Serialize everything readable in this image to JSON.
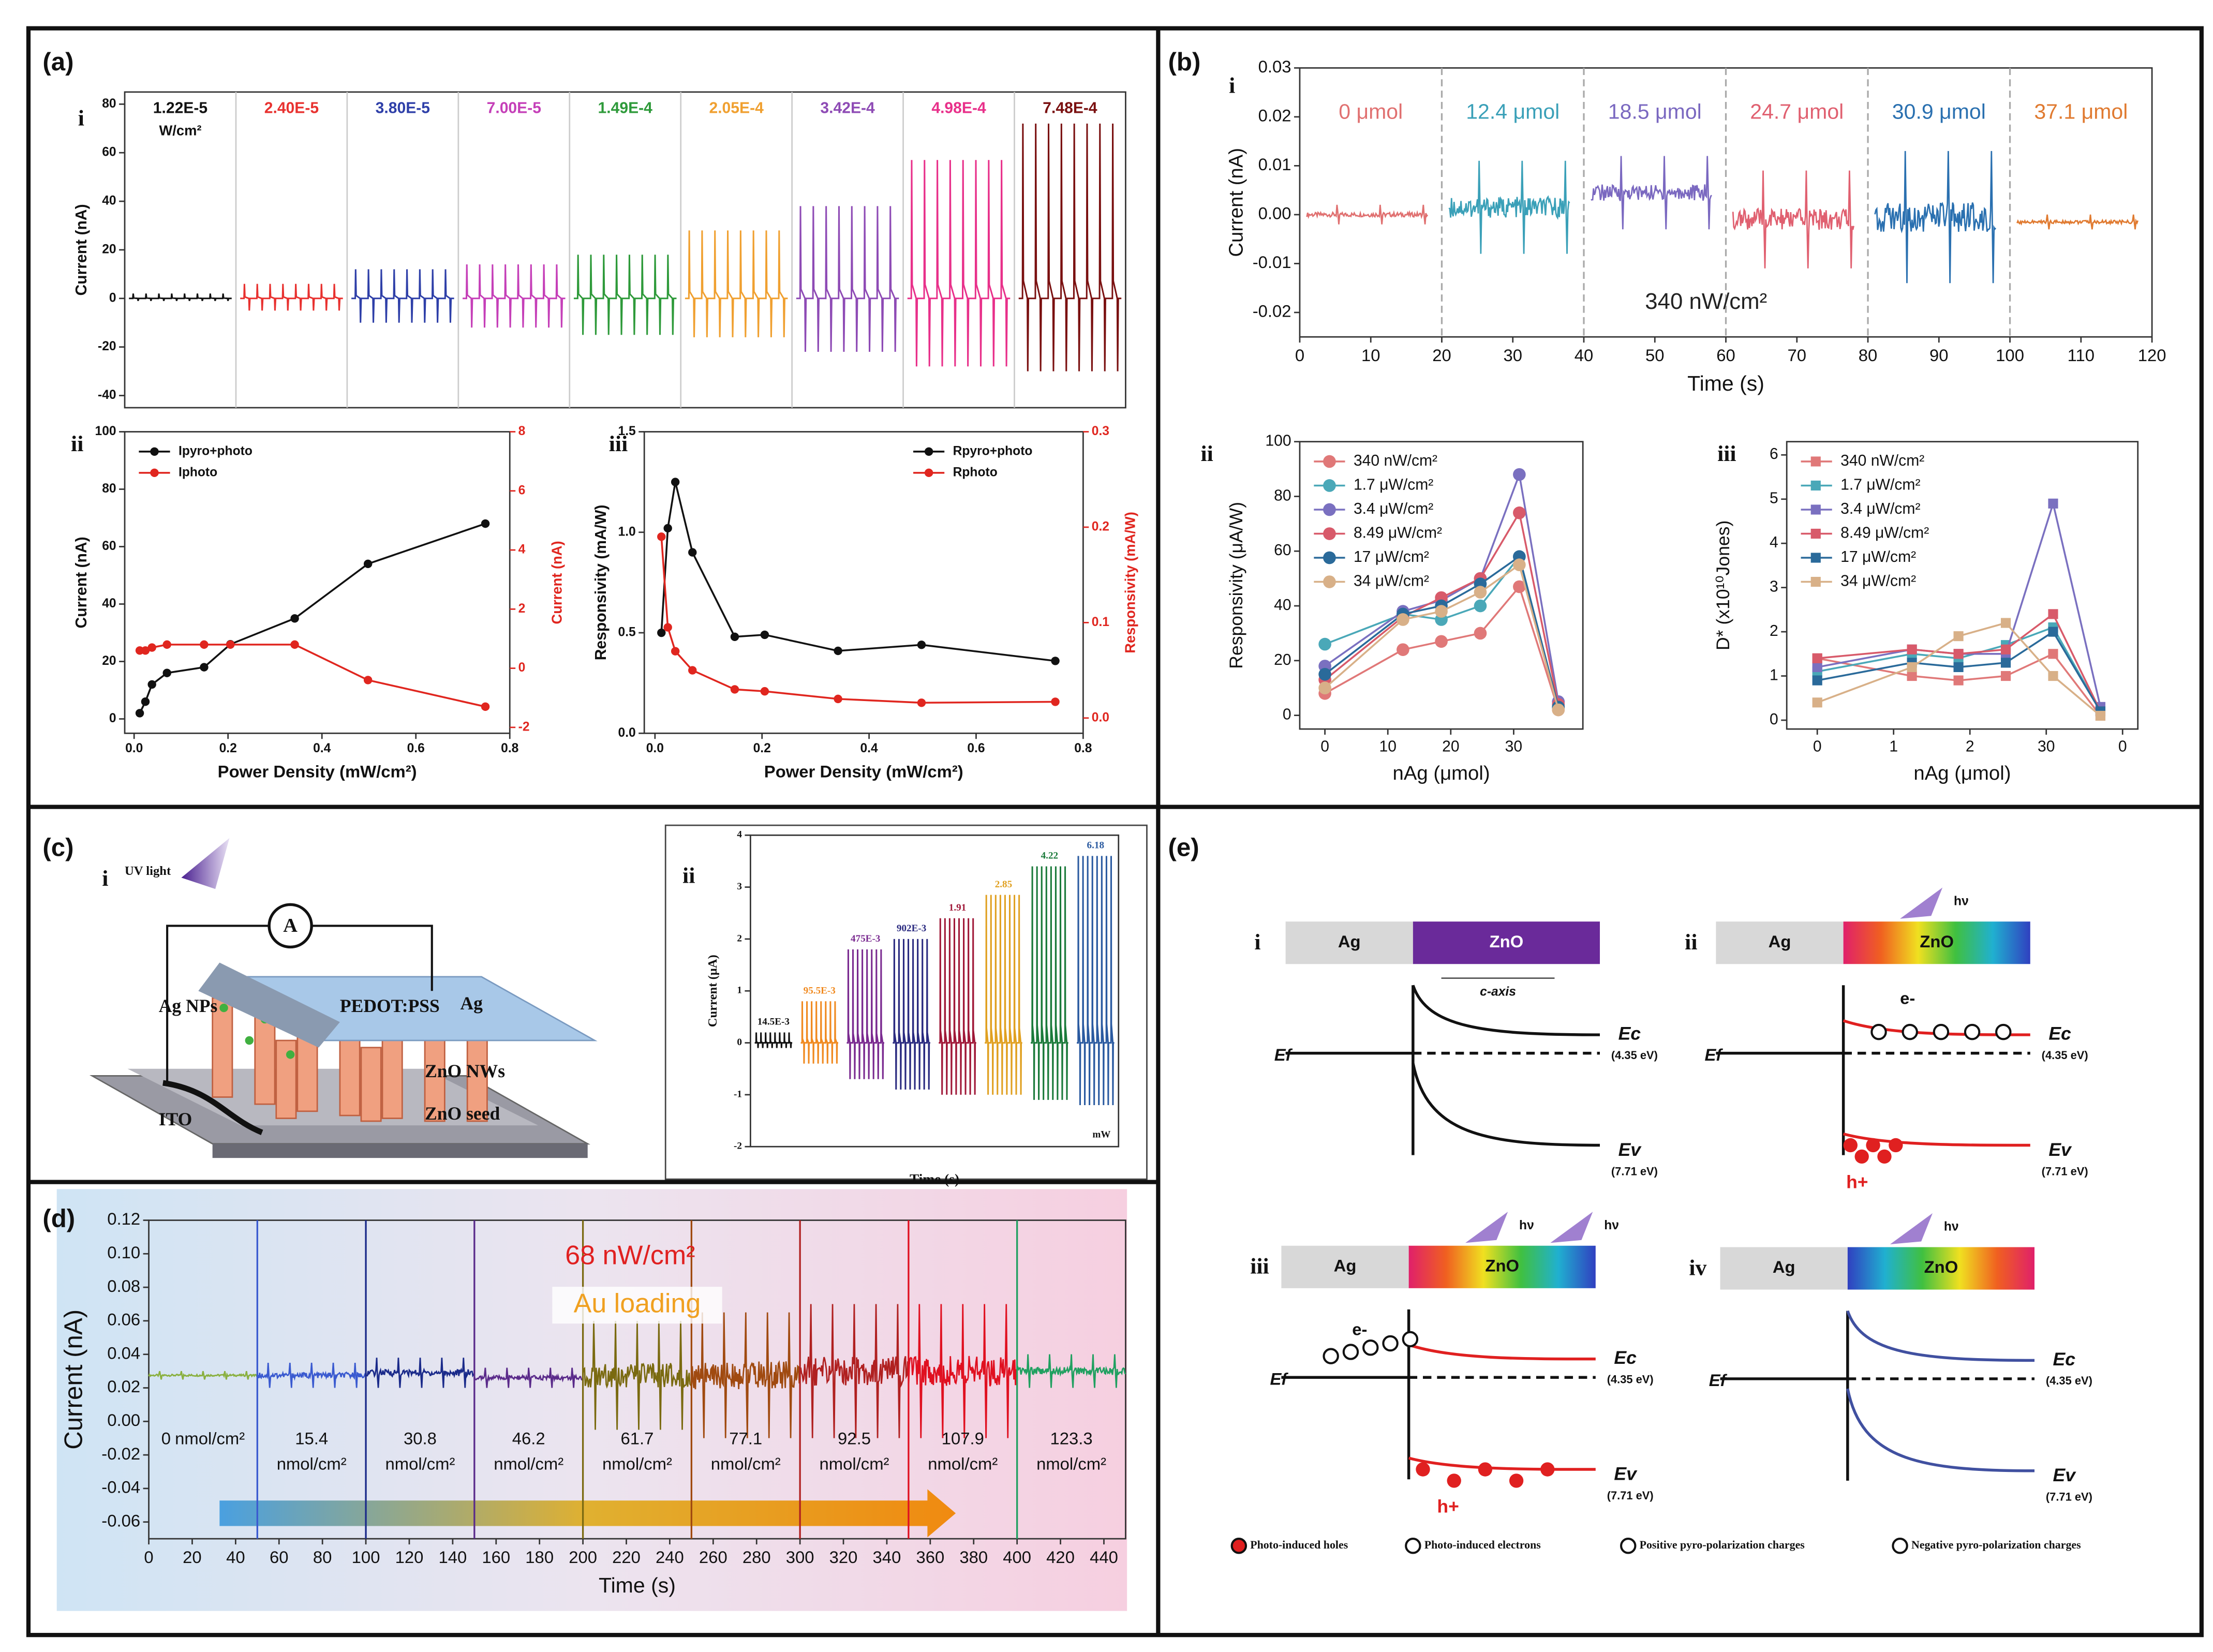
{
  "panel_labels": [
    "(a)",
    "(b)",
    "(c)",
    "(d)",
    "(e)"
  ],
  "chart_data": [
    {
      "type": "pulse",
      "label": "i",
      "ylabel": "Current (nA)",
      "categories": [
        "1.22E-5",
        "2.40E-5",
        "3.80E-5",
        "7.00E-5",
        "1.49E-4",
        "2.05E-4",
        "3.42E-4",
        "4.98E-4",
        "7.48E-4"
      ],
      "unit": "W/cm²",
      "label_pos": "top",
      "colors": [
        "#111111",
        "#e8312f",
        "#2e3fa8",
        "#c53fb8",
        "#2e9a3a",
        "#f0a030",
        "#8e4bb5",
        "#e8308a",
        "#7a1010"
      ],
      "values": [
        2,
        6,
        12,
        14,
        18,
        28,
        38,
        57,
        72
      ],
      "min_values": [
        -1,
        -5,
        -10,
        -12,
        -15,
        -16,
        -22,
        -28,
        -30
      ],
      "ylim": [
        -45,
        85
      ],
      "yticks": [
        -40,
        -20,
        0,
        20,
        40,
        60,
        80
      ]
    },
    {
      "type": "line",
      "label": "ii",
      "xlabel": "Power Density (mW/cm²)",
      "ylabel": "Current (nA)",
      "y2label": "Current (nA)",
      "legend": "upper left",
      "marker": "circle",
      "x": [
        0.012,
        0.024,
        0.038,
        0.07,
        0.149,
        0.205,
        0.342,
        0.498,
        0.748
      ],
      "xlim": [
        -0.02,
        0.8
      ],
      "xticks": [
        {
          "value": 0,
          "label": "0.0"
        },
        0.2,
        0.4,
        0.6,
        0.8
      ],
      "ylim": [
        -5,
        100
      ],
      "yticks": [
        0,
        20,
        40,
        60,
        80,
        100
      ],
      "y2lim": [
        -2.2,
        8
      ],
      "y2ticks": [
        -2,
        0,
        2,
        4,
        6,
        8
      ],
      "series": [
        {
          "name": "Ipyro+photo",
          "color": "#111111",
          "values": [
            2,
            6,
            12,
            16,
            18,
            26,
            35,
            54,
            68
          ]
        },
        {
          "name": "Iphoto",
          "color": "#e0261f",
          "axis": "y2",
          "values": [
            0.6,
            0.6,
            0.7,
            0.8,
            0.8,
            0.8,
            0.8,
            -0.4,
            -1.3
          ]
        }
      ]
    },
    {
      "type": "line",
      "label": "iii",
      "xlabel": "Power Density (mW/cm²)",
      "ylabel": "Responsivity (mA/W)",
      "y2label": "Responsivity (mA/W)",
      "legend": "upper right",
      "marker": "circle",
      "x": [
        0.012,
        0.024,
        0.038,
        0.07,
        0.149,
        0.205,
        0.342,
        0.498,
        0.748
      ],
      "xlim": [
        -0.02,
        0.8
      ],
      "xticks": [
        {
          "value": 0,
          "label": "0.0"
        },
        0.2,
        0.4,
        0.6,
        0.8
      ],
      "ylim": [
        0,
        1.5
      ],
      "yticks": [
        {
          "value": 0,
          "label": "0.0"
        },
        0.5,
        {
          "value": 1,
          "label": "1.0"
        },
        1.5
      ],
      "y2lim": [
        -0.016,
        0.3
      ],
      "y2ticks": [
        {
          "value": 0,
          "label": "0.0"
        },
        0.1,
        0.2,
        0.3
      ],
      "series": [
        {
          "name": "Rpyro+photo",
          "color": "#111111",
          "values": [
            0.5,
            1.02,
            1.25,
            0.9,
            0.48,
            0.49,
            0.41,
            0.44,
            0.36
          ]
        },
        {
          "name": "Rphoto",
          "color": "#e0261f",
          "axis": "y2",
          "values": [
            0.19,
            0.095,
            0.07,
            0.05,
            0.03,
            0.028,
            0.02,
            0.016,
            0.017
          ]
        }
      ]
    },
    {
      "type": "trace",
      "label": "i",
      "xlabel": "Time (s)",
      "ylabel": "Current (nA)",
      "label_pos": "top",
      "annotations": [
        {
          "text": "340 nW/cm²",
          "color": "#222222"
        }
      ],
      "categories": [
        "0 μmol",
        "12.4 μmol",
        "18.5 μmol",
        "24.7 μmol",
        "30.9 μmol",
        "37.1 μmol"
      ],
      "colors": [
        "#e07070",
        "#3aa0b8",
        "#7a68c0",
        "#e06070",
        "#2a70b0",
        "#e07a30"
      ],
      "values": [
        0.002,
        0.011,
        0.012,
        0.009,
        0.013,
        0.0
      ],
      "min_values": [
        -0.002,
        -0.008,
        -0.003,
        -0.011,
        -0.014,
        -0.003
      ],
      "xlim": [
        0,
        120
      ],
      "xticks": [
        0,
        10,
        20,
        30,
        40,
        50,
        60,
        70,
        80,
        90,
        100,
        110,
        120
      ],
      "ylim": [
        -0.025,
        0.03
      ],
      "yticks": [
        -0.02,
        -0.01,
        {
          "value": 0,
          "label": "0.00"
        },
        0.01,
        0.02,
        0.03
      ]
    },
    {
      "type": "line",
      "label": "ii",
      "xlabel": "nAg (μmol)",
      "ylabel": "Responsivity (μA/W)",
      "legend": "upper left",
      "marker": "circle",
      "x": [
        0,
        12.4,
        18.5,
        24.7,
        30.9,
        37.1
      ],
      "xlim": [
        -4,
        41
      ],
      "xticks": [
        0,
        10,
        20,
        30
      ],
      "ylim": [
        -5,
        100
      ],
      "yticks": [
        0,
        20,
        40,
        60,
        80,
        100
      ],
      "series": [
        {
          "name": "340 nW/cm²",
          "color": "#e07878",
          "values": [
            8,
            24,
            27,
            30,
            47,
            2
          ]
        },
        {
          "name": "1.7 μW/cm²",
          "color": "#4aa8b8",
          "values": [
            26,
            37,
            35,
            40,
            58,
            3
          ]
        },
        {
          "name": "3.4 μW/cm²",
          "color": "#7a70c0",
          "values": [
            18,
            38,
            42,
            50,
            88,
            5
          ]
        },
        {
          "name": "8.49 μW/cm²",
          "color": "#d85a6a",
          "values": [
            13,
            36,
            43,
            50,
            74,
            4
          ]
        },
        {
          "name": "17 μW/cm²",
          "color": "#2a6a9a",
          "values": [
            15,
            37,
            40,
            48,
            58,
            3
          ]
        },
        {
          "name": "34 μW/cm²",
          "color": "#d8b088",
          "values": [
            10,
            35,
            38,
            45,
            55,
            2
          ]
        }
      ]
    },
    {
      "type": "line",
      "label": "iii",
      "xlabel": "nAg (μmol)",
      "ylabel": "D* (x10¹⁰Jones)",
      "legend": "upper left",
      "marker": "square",
      "x": [
        0,
        12.4,
        18.5,
        24.7,
        30.9,
        37.1
      ],
      "xlim": [
        -4,
        42
      ],
      "xticks": [
        0,
        {
          "value": 10,
          "label": "1"
        },
        {
          "value": 20,
          "label": "2"
        },
        30,
        {
          "value": 40,
          "label": "0"
        }
      ],
      "ylim": [
        -0.2,
        6.3
      ],
      "yticks": [
        0,
        1,
        2,
        3,
        4,
        5,
        6
      ],
      "series": [
        {
          "name": "340 nW/cm²",
          "color": "#e07878",
          "values": [
            1.4,
            1.0,
            0.9,
            1.0,
            1.5,
            0.1
          ]
        },
        {
          "name": "1.7 μW/cm²",
          "color": "#4aa8b8",
          "values": [
            1.1,
            1.5,
            1.4,
            1.7,
            2.1,
            0.2
          ]
        },
        {
          "name": "3.4 μW/cm²",
          "color": "#7a70c0",
          "values": [
            1.2,
            1.6,
            1.5,
            1.5,
            4.9,
            0.3
          ]
        },
        {
          "name": "8.49 μW/cm²",
          "color": "#d85a6a",
          "values": [
            1.4,
            1.6,
            1.5,
            1.6,
            2.4,
            0.2
          ]
        },
        {
          "name": "17 μW/cm²",
          "color": "#2a6a9a",
          "values": [
            0.9,
            1.3,
            1.2,
            1.3,
            2.0,
            0.2
          ]
        },
        {
          "name": "34 μW/cm²",
          "color": "#d8b088",
          "values": [
            0.4,
            1.2,
            1.9,
            2.2,
            1.0,
            0.1
          ]
        }
      ]
    },
    {
      "type": "pulse",
      "label": "ii",
      "xlabel": "Time (s)",
      "ylabel": "Current (μA)",
      "label_pos": "peak",
      "unit": "mW",
      "categories": [
        "14.5E-3",
        "95.5E-3",
        "475E-3",
        "902E-3",
        "1.91",
        "2.85",
        "4.22",
        "6.18"
      ],
      "colors": [
        "#111111",
        "#f08a20",
        "#7a2a90",
        "#2a2a80",
        "#a01838",
        "#e0a020",
        "#1a7a3a",
        "#2a5aa0"
      ],
      "values": [
        0.2,
        0.8,
        1.8,
        2.0,
        2.4,
        2.85,
        3.4,
        3.6
      ],
      "min_values": [
        -0.1,
        -0.4,
        -0.7,
        -0.9,
        -1.0,
        -1.0,
        -1.1,
        -1.2
      ],
      "ylim": [
        -2,
        4
      ],
      "yticks": [
        -2,
        -1,
        0,
        1,
        2,
        3,
        4
      ]
    },
    {
      "type": "trace",
      "label_pos": "bottom",
      "xlabel": "Time (s)",
      "ylabel": "Current (nA)",
      "unit": "nmol/cm²",
      "annotations": [
        {
          "text": "68 nW/cm²",
          "color": "#e02020"
        },
        {
          "text": "Au loading",
          "color": "#f0a020"
        }
      ],
      "categories": [
        "0",
        "15.4",
        "30.8",
        "46.2",
        "61.7",
        "77.1",
        "92.5",
        "107.9",
        "123.3"
      ],
      "colors": [
        "#8ab040",
        "#3a5ad0",
        "#1a2a8a",
        "#5a2a8a",
        "#7a6a10",
        "#a04a10",
        "#b02020",
        "#e01020",
        "#20a060"
      ],
      "values": [
        0.03,
        0.035,
        0.038,
        0.032,
        0.06,
        0.065,
        0.07,
        0.07,
        0.04
      ],
      "min_values": [
        0.025,
        0.02,
        0.02,
        0.02,
        -0.005,
        -0.01,
        -0.01,
        -0.01,
        0.02
      ],
      "xlim": [
        0,
        450
      ],
      "xticks": [
        0,
        20,
        40,
        60,
        80,
        100,
        120,
        140,
        160,
        180,
        200,
        220,
        240,
        260,
        280,
        300,
        320,
        340,
        360,
        380,
        400,
        420,
        440
      ],
      "ylim": [
        -0.07,
        0.12
      ],
      "yticks": [
        -0.06,
        -0.04,
        -0.02,
        {
          "value": 0,
          "label": "0.00"
        },
        0.02,
        0.04,
        0.06,
        0.08,
        {
          "value": 0.1,
          "label": "0.10"
        },
        0.12
      ]
    }
  ],
  "diagram_c": {
    "label": "i",
    "uv": "UV light",
    "ammeter": "A",
    "parts": [
      "Ag NPs",
      "PEDOT:PSS",
      "Ag",
      "ZnO NWs",
      "ITO",
      "ZnO seed"
    ]
  },
  "diagram_e": {
    "panels": [
      "i",
      "ii",
      "iii",
      "iv"
    ],
    "metal": "Ag",
    "semi": "ZnO",
    "axis": "c-axis",
    "photon": "hν",
    "ef": "Ef",
    "ec": "Ec",
    "ev": "Ev",
    "ec_val": "(4.35 eV)",
    "ev_val": "(7.71 eV)",
    "electron": "e-",
    "hole": "h+",
    "legend": [
      "Photo-induced holes",
      "Photo-induced electrons",
      "Positive  pyro-polarization charges",
      "Negative pyro-polarization charges"
    ]
  }
}
